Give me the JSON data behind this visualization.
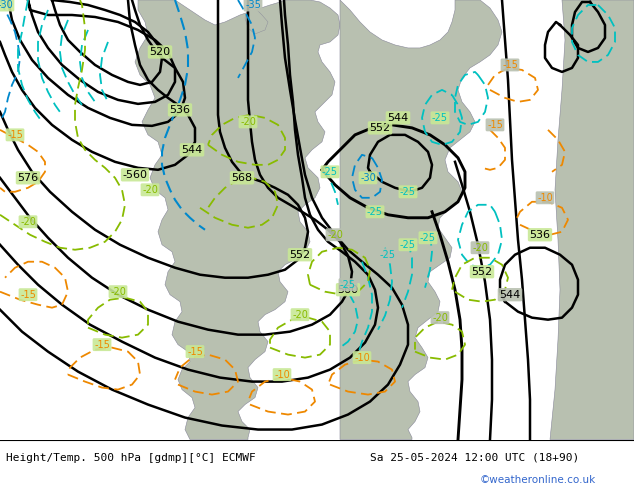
{
  "title_left": "Height/Temp. 500 hPa [gdmp][°C] ECMWF",
  "title_right": "Sa 25-05-2024 12:00 UTC (18+90)",
  "watermark": "©weatheronline.co.uk",
  "bg_green": "#c8e896",
  "bg_gray": "#b8c0b0",
  "bg_light_gray": "#c0c8c0",
  "bg_white_gray": "#d0d8d0",
  "footer_bg": "#ffffff",
  "black": "#000000",
  "cyan": "#00c0c0",
  "blue": "#0088cc",
  "ygreen": "#88bb00",
  "orange": "#ee8800",
  "border_gray": "#888899",
  "figsize": [
    6.34,
    4.9
  ],
  "dpi": 100
}
